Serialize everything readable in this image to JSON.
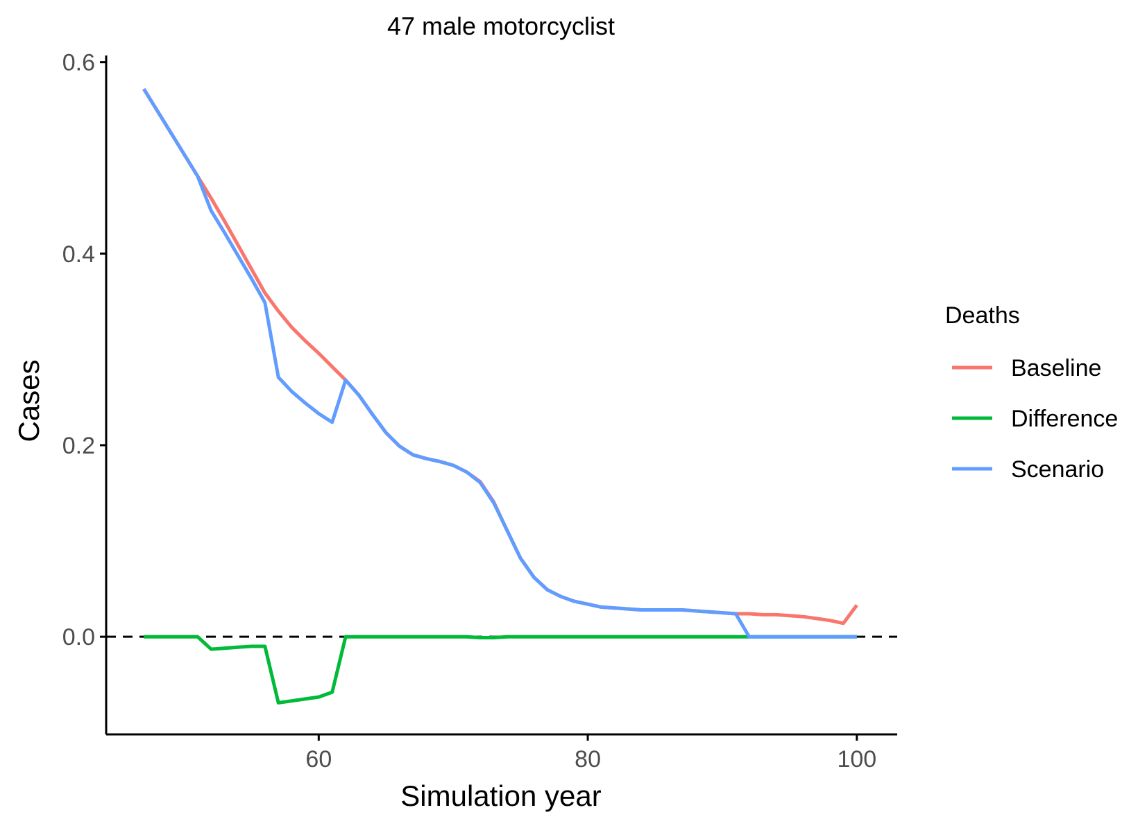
{
  "chart_data": {
    "type": "line",
    "title": "47 male motorcyclist",
    "xlabel": "Simulation year",
    "ylabel": "Cases",
    "xlim": [
      44.2,
      103.0
    ],
    "ylim": [
      -0.102,
      0.607
    ],
    "xticks": [
      60,
      80,
      100
    ],
    "yticks": [
      0.0,
      0.2,
      0.4,
      0.6
    ],
    "xtick_labels": [
      "60",
      "80",
      "100"
    ],
    "ytick_labels": [
      "0.0",
      "0.2",
      "0.4",
      "0.6"
    ],
    "grid": false,
    "reference_line": {
      "y": 0.0,
      "style": "dashed",
      "color": "#000000"
    },
    "legend": {
      "title": "Deaths",
      "position": "right"
    },
    "series": [
      {
        "name": "Baseline",
        "color": "#F8766D",
        "x": [
          47,
          51,
          52,
          53,
          54,
          55,
          56,
          57,
          58,
          59,
          60,
          61,
          62,
          63,
          64,
          65,
          66,
          67,
          68,
          69,
          70,
          71,
          72,
          73,
          74,
          75,
          76,
          77,
          78,
          79,
          80,
          81,
          82,
          83,
          84,
          85,
          86,
          87,
          88,
          89,
          90,
          91,
          92,
          93,
          94,
          95,
          96,
          97,
          98,
          99,
          100
        ],
        "values": [
          0.572,
          0.481,
          0.458,
          0.434,
          0.409,
          0.384,
          0.359,
          0.34,
          0.323,
          0.309,
          0.296,
          0.282,
          0.268,
          0.252,
          0.232,
          0.213,
          0.199,
          0.19,
          0.186,
          0.183,
          0.179,
          0.172,
          0.162,
          0.141,
          0.111,
          0.082,
          0.062,
          0.049,
          0.042,
          0.037,
          0.034,
          0.031,
          0.03,
          0.029,
          0.028,
          0.028,
          0.028,
          0.028,
          0.027,
          0.026,
          0.025,
          0.024,
          0.024,
          0.023,
          0.023,
          0.022,
          0.021,
          0.019,
          0.017,
          0.014,
          0.033
        ]
      },
      {
        "name": "Difference",
        "color": "#00BA38",
        "x": [
          47,
          51,
          52,
          53,
          54,
          55,
          56,
          57,
          58,
          59,
          60,
          61,
          62,
          63,
          64,
          65,
          66,
          67,
          68,
          69,
          70,
          71,
          72,
          73,
          74,
          75,
          76,
          77,
          78,
          79,
          80,
          81,
          82,
          83,
          84,
          85,
          86,
          87,
          88,
          89,
          90,
          91,
          92,
          93,
          94,
          95,
          96,
          97,
          98,
          99,
          100
        ],
        "values": [
          0.0,
          0.0,
          -0.013,
          -0.012,
          -0.011,
          -0.01,
          -0.01,
          -0.069,
          -0.067,
          -0.065,
          -0.063,
          -0.058,
          0.0,
          0.0,
          0.0,
          0.0,
          0.0,
          0.0,
          0.0,
          0.0,
          0.0,
          0.0,
          -0.001,
          -0.001,
          0.0,
          0.0,
          0.0,
          0.0,
          0.0,
          0.0,
          0.0,
          0.0,
          0.0,
          0.0,
          0.0,
          0.0,
          0.0,
          0.0,
          0.0,
          0.0,
          0.0,
          0.0,
          0.0,
          0.0,
          0.0,
          0.0,
          0.0,
          0.0,
          0.0,
          0.0,
          0.0
        ]
      },
      {
        "name": "Scenario",
        "color": "#619CFF",
        "x": [
          47,
          51,
          52,
          53,
          54,
          55,
          56,
          57,
          58,
          59,
          60,
          61,
          62,
          63,
          64,
          65,
          66,
          67,
          68,
          69,
          70,
          71,
          72,
          73,
          74,
          75,
          76,
          77,
          78,
          79,
          80,
          81,
          82,
          83,
          84,
          85,
          86,
          87,
          88,
          89,
          90,
          91,
          92,
          93,
          94,
          95,
          96,
          97,
          98,
          99,
          100
        ],
        "values": [
          0.572,
          0.481,
          0.445,
          0.422,
          0.398,
          0.374,
          0.349,
          0.271,
          0.256,
          0.244,
          0.233,
          0.224,
          0.268,
          0.252,
          0.232,
          0.213,
          0.199,
          0.19,
          0.186,
          0.183,
          0.179,
          0.172,
          0.161,
          0.14,
          0.111,
          0.082,
          0.062,
          0.049,
          0.042,
          0.037,
          0.034,
          0.031,
          0.03,
          0.029,
          0.028,
          0.028,
          0.028,
          0.028,
          0.027,
          0.026,
          0.025,
          0.024,
          0.0,
          0.0,
          0.0,
          0.0,
          0.0,
          0.0,
          0.0,
          0.0,
          0.0
        ]
      }
    ]
  }
}
